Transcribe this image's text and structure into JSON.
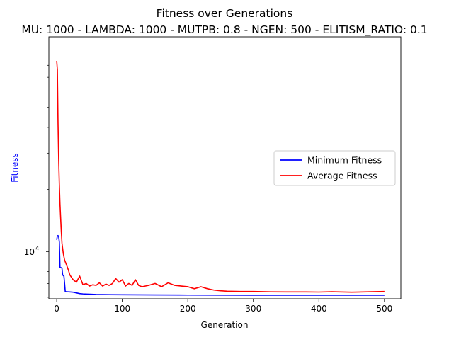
{
  "chart_data": {
    "type": "line",
    "title": "Fitness over Generations",
    "subtitle": "MU: 1000 - LAMBDA: 1000 - MUTPB: 0.8 - NGEN: 500 - ELITISM_RATIO: 0.1",
    "xlabel": "Generation",
    "ylabel": "Fitness",
    "ylabel_color": "#0000ff",
    "yscale": "log",
    "xlim": [
      -12,
      525
    ],
    "ylim": [
      5900,
      110000
    ],
    "x_ticks": [
      {
        "value": 0,
        "label": "0"
      },
      {
        "value": 100,
        "label": "100"
      },
      {
        "value": 200,
        "label": "200"
      },
      {
        "value": 300,
        "label": "300"
      },
      {
        "value": 400,
        "label": "400"
      },
      {
        "value": 500,
        "label": "500"
      }
    ],
    "y_major_ticks": [
      {
        "value": 10000,
        "label_base": "10",
        "label_exp": "4"
      }
    ],
    "y_minor_ticks": [
      6000,
      7000,
      8000,
      9000,
      20000,
      30000,
      40000,
      50000,
      60000,
      70000,
      80000,
      90000
    ],
    "legend": {
      "position": "center-right"
    },
    "series": [
      {
        "name": "Minimum Fitness",
        "color": "#0000ff",
        "x": [
          0,
          1,
          2,
          3,
          4,
          5,
          6,
          7,
          8,
          9,
          10,
          11,
          12,
          13,
          15,
          20,
          25,
          30,
          35,
          40,
          50,
          60,
          80,
          100,
          150,
          200,
          250,
          300,
          350,
          400,
          450,
          500
        ],
        "y": [
          11400,
          11900,
          11950,
          11800,
          11100,
          8400,
          8350,
          8350,
          8300,
          7700,
          7650,
          7600,
          7000,
          6400,
          6380,
          6370,
          6350,
          6300,
          6250,
          6230,
          6210,
          6190,
          6180,
          6170,
          6160,
          6150,
          6145,
          6140,
          6140,
          6140,
          6140,
          6140
        ]
      },
      {
        "name": "Average Fitness",
        "color": "#ff0000",
        "x": [
          0,
          1,
          2,
          3,
          4,
          5,
          6,
          7,
          8,
          10,
          12,
          15,
          18,
          20,
          25,
          30,
          32,
          35,
          40,
          45,
          50,
          55,
          60,
          65,
          70,
          75,
          80,
          85,
          90,
          95,
          100,
          105,
          110,
          115,
          120,
          125,
          130,
          140,
          150,
          160,
          170,
          180,
          190,
          200,
          210,
          220,
          230,
          240,
          250,
          260,
          280,
          300,
          320,
          350,
          380,
          400,
          420,
          450,
          480,
          500
        ],
        "y": [
          84000,
          76000,
          42000,
          28000,
          21000,
          17000,
          14500,
          12500,
          11000,
          9800,
          9100,
          8600,
          8100,
          7700,
          7300,
          7100,
          7300,
          7600,
          6900,
          7000,
          6800,
          6900,
          6850,
          7050,
          6800,
          6950,
          6850,
          7000,
          7400,
          7100,
          7300,
          6800,
          7000,
          6850,
          7300,
          6850,
          6750,
          6850,
          7000,
          6750,
          7050,
          6850,
          6800,
          6750,
          6600,
          6750,
          6600,
          6500,
          6450,
          6420,
          6400,
          6400,
          6380,
          6370,
          6370,
          6360,
          6380,
          6350,
          6380,
          6400
        ]
      }
    ]
  }
}
